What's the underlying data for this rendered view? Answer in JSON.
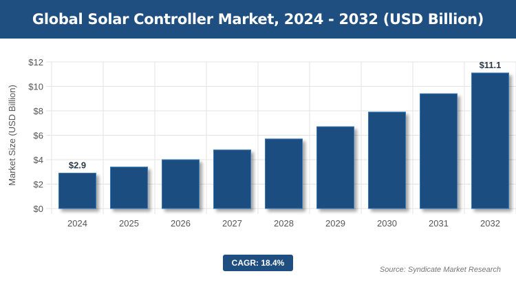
{
  "title": "Global Solar Controller Market, 2024 - 2032 (USD Billion)",
  "cagr": "CAGR: 18.4%",
  "source": "Source: Syndicate Market Research",
  "chart_data": {
    "type": "bar",
    "title": "Global Solar Controller Market, 2024 - 2032 (USD Billion)",
    "xlabel": "",
    "ylabel": "Market Size (USD Billion)",
    "categories": [
      "2024",
      "2025",
      "2026",
      "2027",
      "2028",
      "2029",
      "2030",
      "2031",
      "2032"
    ],
    "values": [
      2.9,
      3.4,
      4.0,
      4.8,
      5.7,
      6.7,
      7.9,
      9.4,
      11.1
    ],
    "data_labels": {
      "0": "$2.9",
      "8": "$11.1"
    },
    "ylim": [
      0,
      12
    ],
    "yticks": [
      0,
      2,
      4,
      6,
      8,
      10,
      12
    ],
    "ytick_labels": [
      "$0",
      "$2",
      "$4",
      "$6",
      "$8",
      "$10",
      "$12"
    ],
    "grid": true,
    "bar_color": "#1f4e80"
  }
}
